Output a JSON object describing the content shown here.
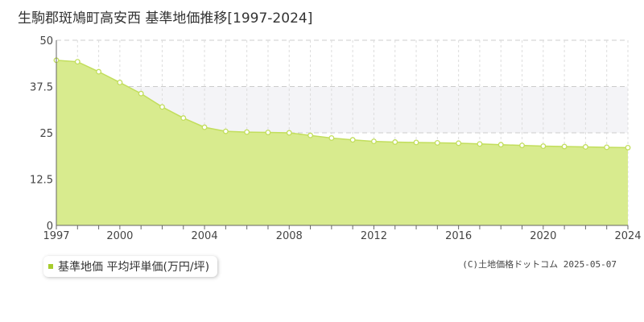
{
  "title": "生駒郡斑鳩町高安西 基準地価推移[1997-2024]",
  "legend_label": "基準地価 平均坪単価(万円/坪)",
  "credit": "(C)土地価格ドットコム 2025-05-07",
  "colors": {
    "fill": "#d8eb8e",
    "line": "#c2de5c",
    "legend_marker": "#a7cc2d",
    "band": "#f4f4f7"
  },
  "chart_data": {
    "type": "area",
    "title": "生駒郡斑鳩町高安西 基準地価推移[1997-2024]",
    "xlabel": "",
    "ylabel": "",
    "xlim": [
      1997,
      2024
    ],
    "ylim": [
      0,
      50
    ],
    "x_ticks": [
      1997,
      2000,
      2004,
      2008,
      2012,
      2016,
      2020,
      2024
    ],
    "y_ticks": [
      0,
      12.5,
      25,
      37.5,
      50
    ],
    "y_tick_labels": [
      "0",
      "12.5",
      "25",
      "37.5",
      "50"
    ],
    "grid": true,
    "legend_position": "bottom-left",
    "series": [
      {
        "name": "基準地価 平均坪単価(万円/坪)",
        "x": [
          1997,
          1998,
          1999,
          2000,
          2001,
          2002,
          2003,
          2004,
          2005,
          2006,
          2007,
          2008,
          2009,
          2010,
          2011,
          2012,
          2013,
          2014,
          2015,
          2016,
          2017,
          2018,
          2019,
          2020,
          2021,
          2022,
          2023,
          2024
        ],
        "values": [
          44.6,
          44.2,
          41.5,
          38.6,
          35.6,
          32.0,
          29.0,
          26.5,
          25.4,
          25.2,
          25.1,
          25.0,
          24.3,
          23.6,
          23.1,
          22.7,
          22.5,
          22.4,
          22.3,
          22.2,
          22.0,
          21.8,
          21.6,
          21.4,
          21.3,
          21.2,
          21.1,
          21.0
        ]
      }
    ]
  }
}
